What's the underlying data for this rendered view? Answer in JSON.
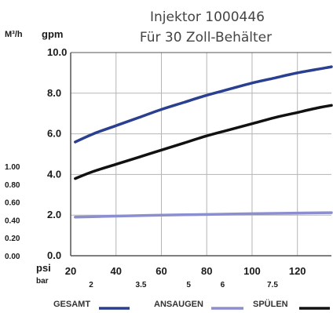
{
  "chart_data": {
    "type": "line",
    "title": "Injektor 1000446",
    "subtitle": "Für 30 Zoll-Behälter",
    "ylabel_left": "M³/h",
    "ylabel_right": "gpm",
    "xlabel_top": "psi",
    "xlabel_bottom": "bar",
    "xlim": [
      20,
      135
    ],
    "ylim": [
      0,
      10
    ],
    "gpm_ticks": [
      "0.0",
      "2.0",
      "4.0",
      "6.0",
      "8.0",
      "10.0"
    ],
    "m3h_ticks": [
      "0.00",
      "0.20",
      "0.40",
      "0.60",
      "0.80",
      "1.00"
    ],
    "m3h_tick_values": [
      0,
      0.88,
      1.76,
      2.64,
      3.52,
      4.4
    ],
    "psi_ticks": [
      "20",
      "40",
      "60",
      "80",
      "100",
      "120"
    ],
    "psi_tick_values": [
      20,
      40,
      60,
      80,
      100,
      120
    ],
    "bar_ticks": [
      "2",
      "3.5",
      "5",
      "6",
      "7.5"
    ],
    "bar_tick_values": [
      29,
      51,
      72,
      87,
      109
    ],
    "grid": true,
    "series": [
      {
        "name": "GESAMT",
        "color": "#2a3f8f",
        "x": [
          22,
          30,
          40,
          50,
          60,
          70,
          80,
          90,
          100,
          110,
          120,
          130,
          135
        ],
        "y": [
          5.6,
          6.0,
          6.4,
          6.8,
          7.2,
          7.55,
          7.9,
          8.2,
          8.5,
          8.75,
          9.0,
          9.2,
          9.3
        ]
      },
      {
        "name": "ANSAUGEN",
        "color": "#8b8fd0",
        "x": [
          22,
          40,
          60,
          80,
          100,
          120,
          135
        ],
        "y": [
          1.9,
          1.95,
          2.0,
          2.03,
          2.07,
          2.1,
          2.12
        ]
      },
      {
        "name": "SPÜLEN",
        "color": "#111111",
        "x": [
          22,
          30,
          40,
          50,
          60,
          70,
          80,
          90,
          100,
          110,
          120,
          130,
          135
        ],
        "y": [
          3.8,
          4.15,
          4.5,
          4.85,
          5.2,
          5.55,
          5.9,
          6.2,
          6.5,
          6.8,
          7.05,
          7.3,
          7.4
        ]
      }
    ]
  }
}
